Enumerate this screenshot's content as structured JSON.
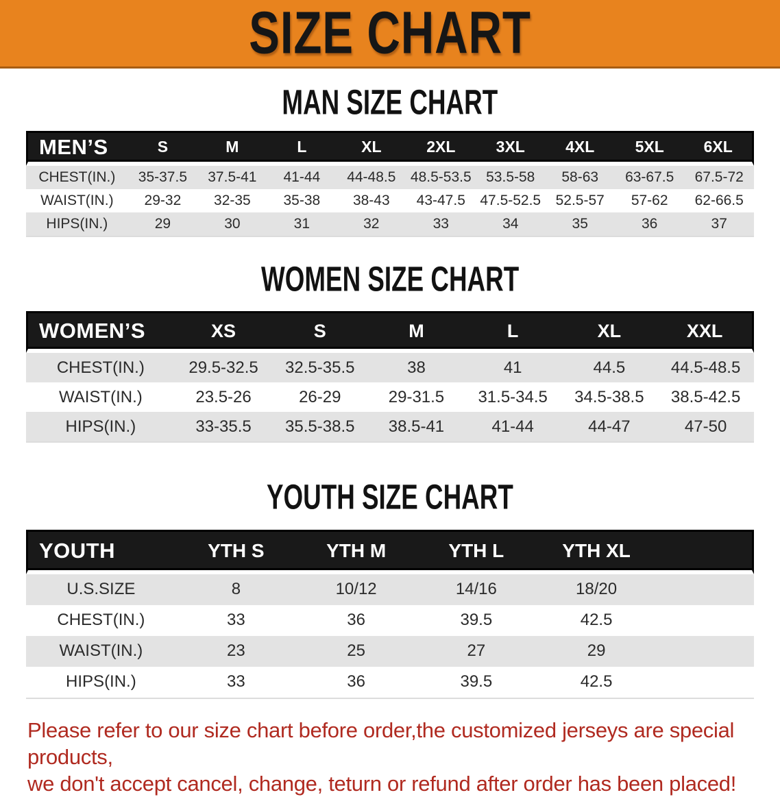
{
  "banner": {
    "title": "SIZE CHART"
  },
  "colors": {
    "banner_bg": "#e8831e",
    "table_header_bg": "#191919",
    "row_stripe": "#e3e3e3",
    "disclaimer_red": "#b02a20"
  },
  "sections": {
    "men": {
      "heading": "MAN SIZE CHART"
    },
    "women": {
      "heading": "WOMEN SIZE CHART"
    },
    "youth": {
      "heading": "YOUTH SIZE CHART"
    }
  },
  "tables": {
    "men": {
      "label": "MEN’S",
      "columns": [
        "S",
        "M",
        "L",
        "XL",
        "2XL",
        "3XL",
        "4XL",
        "5XL",
        "6XL"
      ],
      "rows": [
        {
          "label": "CHEST(IN.)",
          "values": [
            "35-37.5",
            "37.5-41",
            "41-44",
            "44-48.5",
            "48.5-53.5",
            "53.5-58",
            "58-63",
            "63-67.5",
            "67.5-72"
          ]
        },
        {
          "label": "WAIST(IN.)",
          "values": [
            "29-32",
            "32-35",
            "35-38",
            "38-43",
            "43-47.5",
            "47.5-52.5",
            "52.5-57",
            "57-62",
            "62-66.5"
          ]
        },
        {
          "label": "HIPS(IN.)",
          "values": [
            "29",
            "30",
            "31",
            "32",
            "33",
            "34",
            "35",
            "36",
            "37"
          ]
        }
      ]
    },
    "women": {
      "label": "WOMEN’S",
      "columns": [
        "XS",
        "S",
        "M",
        "L",
        "XL",
        "XXL"
      ],
      "rows": [
        {
          "label": "CHEST(IN.)",
          "values": [
            "29.5-32.5",
            "32.5-35.5",
            "38",
            "41",
            "44.5",
            "44.5-48.5"
          ]
        },
        {
          "label": "WAIST(IN.)",
          "values": [
            "23.5-26",
            "26-29",
            "29-31.5",
            "31.5-34.5",
            "34.5-38.5",
            "38.5-42.5"
          ]
        },
        {
          "label": "HIPS(IN.)",
          "values": [
            "33-35.5",
            "35.5-38.5",
            "38.5-41",
            "41-44",
            "44-47",
            "47-50"
          ]
        }
      ]
    },
    "youth": {
      "label": "YOUTH",
      "columns": [
        "YTH S",
        "YTH M",
        "YTH L",
        "YTH XL"
      ],
      "has_trailing_filler": true,
      "rows": [
        {
          "label": "U.S.SIZE",
          "values": [
            "8",
            "10/12",
            "14/16",
            "18/20"
          ]
        },
        {
          "label": "CHEST(IN.)",
          "values": [
            "33",
            "36",
            "39.5",
            "42.5"
          ]
        },
        {
          "label": "WAIST(IN.)",
          "values": [
            "23",
            "25",
            "27",
            "29"
          ]
        },
        {
          "label": "HIPS(IN.)",
          "values": [
            "33",
            "36",
            "39.5",
            "42.5"
          ]
        }
      ]
    }
  },
  "disclaimer": {
    "line1": "Please refer to our size chart before order,the customized jerseys are special products,",
    "line2": "we don't accept cancel, change, teturn or refund after order has been placed!"
  }
}
